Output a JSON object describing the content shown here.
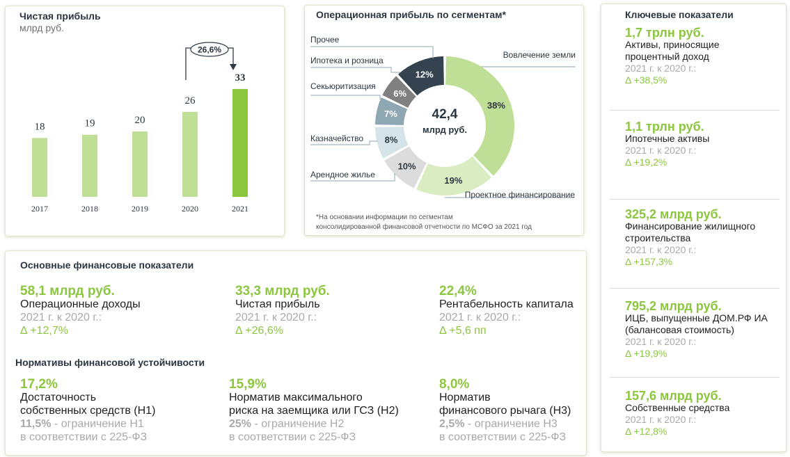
{
  "profit": {
    "title": "Чистая прибыль",
    "unit": "млрд руб.",
    "growth_badge": "26,6%"
  },
  "chart_data": [
    {
      "type": "bar",
      "title": "Чистая прибыль",
      "ylabel": "млрд руб.",
      "categories": [
        "2017",
        "2018",
        "2019",
        "2020",
        "2021"
      ],
      "values": [
        18,
        19,
        20,
        26,
        33
      ],
      "highlight_index": 4,
      "colors": {
        "base": "#bfdf96",
        "highlight": "#8cc63f"
      }
    },
    {
      "type": "pie",
      "title": "Операционная прибыль по сегментам*",
      "center_value": "42,4",
      "center_unit": "млрд руб.",
      "segments": [
        {
          "name": "Вовлечение земли",
          "value": 38,
          "label": "38%",
          "color": "#bfdf96"
        },
        {
          "name": "Проектное финансирование",
          "value": 19,
          "label": "19%",
          "color": "#d9ecc2"
        },
        {
          "name": "Арендное жилье",
          "value": 10,
          "label": "10%",
          "color": "#dcdcdc"
        },
        {
          "name": "Казначейство",
          "value": 8,
          "label": "8%",
          "color": "#d6e3e8"
        },
        {
          "name": "Секьюритизация",
          "value": 7,
          "label": "7%",
          "color": "#8fa7b3"
        },
        {
          "name": "Ипотека и розница",
          "value": 6,
          "label": "6%",
          "color": "#808080"
        },
        {
          "name": "Прочее",
          "value": 12,
          "label": "12%",
          "color": "#34434f"
        }
      ],
      "footnote_1": "*На основании информации по сегментам",
      "footnote_2": "консолидированной финансовой отчетности по МСФО за 2021 год"
    }
  ],
  "key": {
    "title": "Ключевые показатели",
    "items": [
      {
        "value": "1,7 трлн руб.",
        "label_1": "Активы, приносящие",
        "label_2": "процентный доход",
        "period": "2021 г. к 2020 г.:",
        "delta": "Δ +38,5%"
      },
      {
        "value": "1,1 трлн руб.",
        "label_1": "Ипотечные активы",
        "label_2": "",
        "period": "2021 г. к 2020 г.:",
        "delta": "Δ +19,2%"
      },
      {
        "value": "325,2 млрд руб.",
        "label_1": "Финансирование жилищного",
        "label_2": "строительства",
        "period": "2021 г. к 2020 г.:",
        "delta": "Δ +157,3%"
      },
      {
        "value": "795,2 млрд руб.",
        "label_1": "ИЦБ, выпущенные ДОМ.РФ ИА",
        "label_2": "(балансовая стоимость)",
        "period": "2021 г. к 2020 г.:",
        "delta": "Δ +19,9%"
      },
      {
        "value": "157,6 млрд руб.",
        "label_1": "Собственные средства",
        "label_2": "",
        "period": "2021 г. к 2020 г.:",
        "delta": "Δ +12,8%"
      }
    ]
  },
  "fin": {
    "title": "Основные финансовые показатели",
    "items": [
      {
        "value": "58,1 млрд руб.",
        "label": "Операционные доходы",
        "period": "2021 г. к 2020 г.:",
        "delta": "Δ +12,7%"
      },
      {
        "value": "33,3 млрд руб.",
        "label": "Чистая прибыль",
        "period": "2021 г. к 2020 г.:",
        "delta": "Δ +26,6%"
      },
      {
        "value": "22,4%",
        "label": "Рентабельность капитала",
        "period": "2021 г. к 2020 г.:",
        "delta": "Δ +5,6 пп"
      }
    ]
  },
  "norms": {
    "title": "Нормативы финансовой устойчивости",
    "items": [
      {
        "value": "17,2%",
        "label_1": "Достаточность",
        "label_2": "собственных средств (Н1)",
        "limit": "11,5%",
        "limit_text": " - ограничение Н1",
        "law": "в соответствии с 225-ФЗ"
      },
      {
        "value": "15,9%",
        "label_1": "Норматив максимального",
        "label_2": "риска на заемщика или ГСЗ (Н2)",
        "limit": "25%",
        "limit_text": " - ограничение Н2",
        "law": "в соответствии с 225-ФЗ"
      },
      {
        "value": "8,0%",
        "label_1": "Норматив",
        "label_2": "финансового рычага (Н3)",
        "limit": "2,5%",
        "limit_text": " - ограничение Н3",
        "law": "в соответствии с 225-ФЗ"
      }
    ]
  }
}
